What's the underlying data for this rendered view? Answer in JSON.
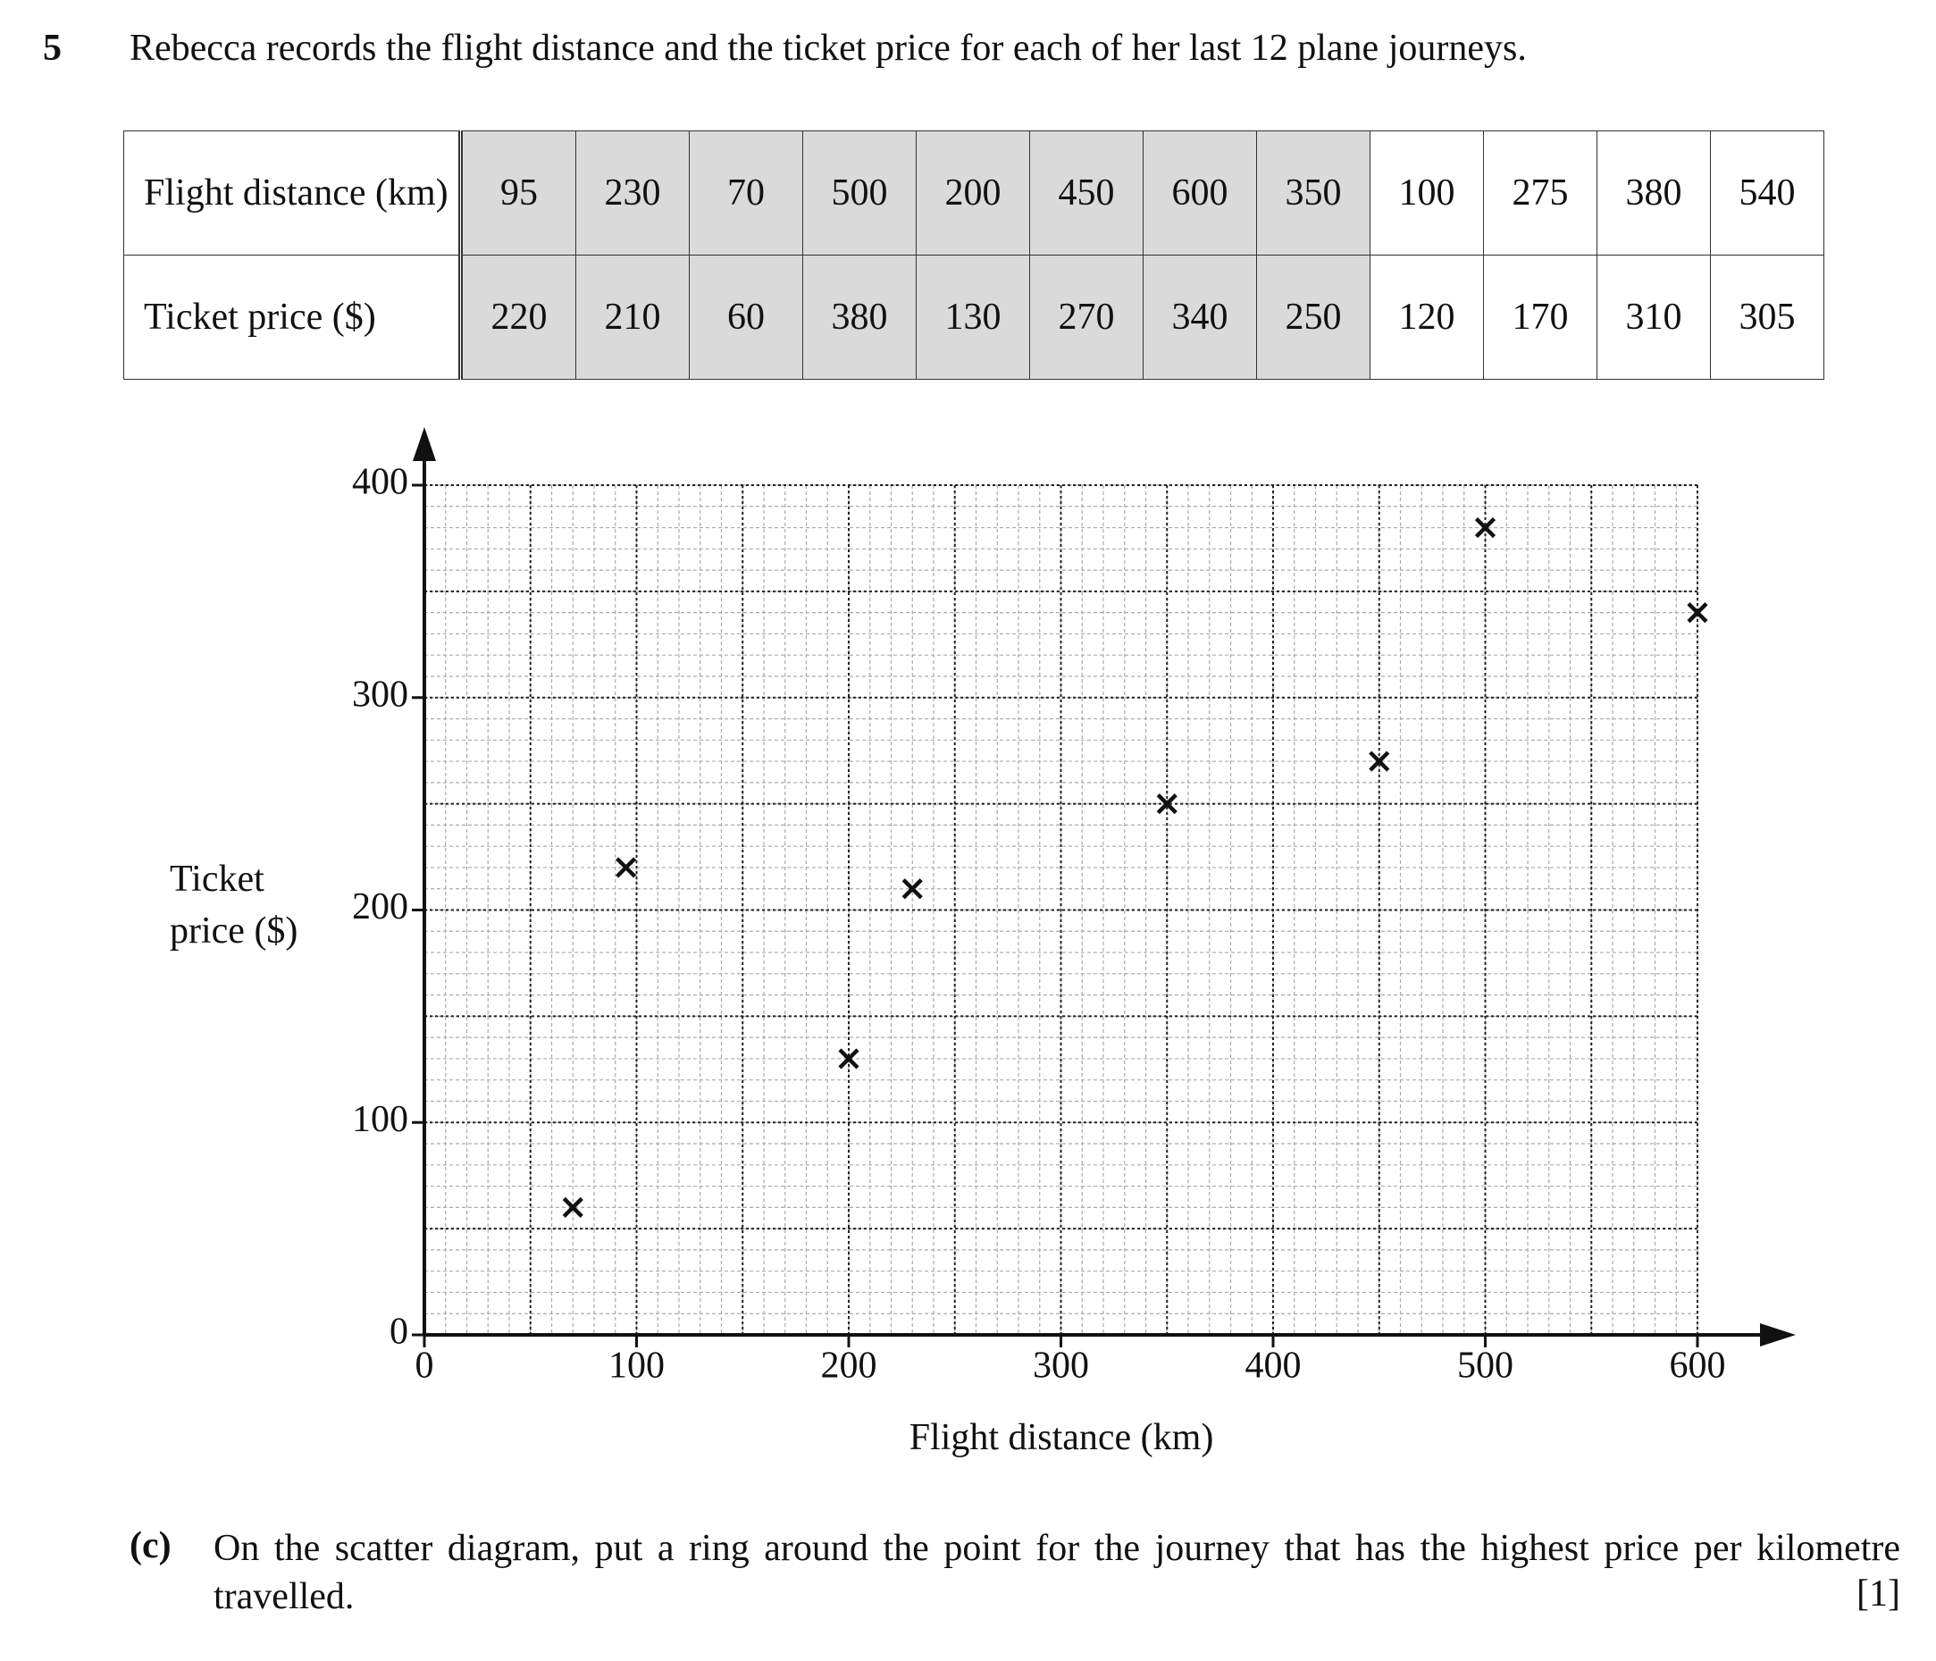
{
  "question": {
    "number": "5",
    "text": "Rebecca records the flight distance and the ticket price for each of her last 12 plane journeys."
  },
  "table": {
    "rows": [
      {
        "label": "Flight distance (km)",
        "values": [
          95,
          230,
          70,
          500,
          200,
          450,
          600,
          350,
          100,
          275,
          380,
          540
        ]
      },
      {
        "label": "Ticket price ($)",
        "values": [
          220,
          210,
          60,
          380,
          130,
          270,
          340,
          250,
          120,
          170,
          310,
          305
        ]
      }
    ]
  },
  "chart_data": {
    "type": "scatter",
    "x": [
      95,
      230,
      70,
      500,
      200,
      450,
      600,
      350
    ],
    "values": [
      220,
      210,
      60,
      380,
      130,
      270,
      340,
      250
    ],
    "xlabel": "Flight distance (km)",
    "ylabel": "Ticket price ($)",
    "xlim": [
      0,
      600
    ],
    "ylim": [
      0,
      400
    ],
    "xticks": [
      0,
      100,
      200,
      300,
      400,
      500,
      600
    ],
    "yticks": [
      0,
      100,
      200,
      300,
      400
    ],
    "grid_minor": 10,
    "grid_major": 50,
    "marker": "x",
    "color": "#111111"
  },
  "part": {
    "label": "(c)",
    "text": "On the scatter diagram, put a ring around the point for the journey that has the highest price per kilometre travelled.",
    "marks": "[1]"
  }
}
